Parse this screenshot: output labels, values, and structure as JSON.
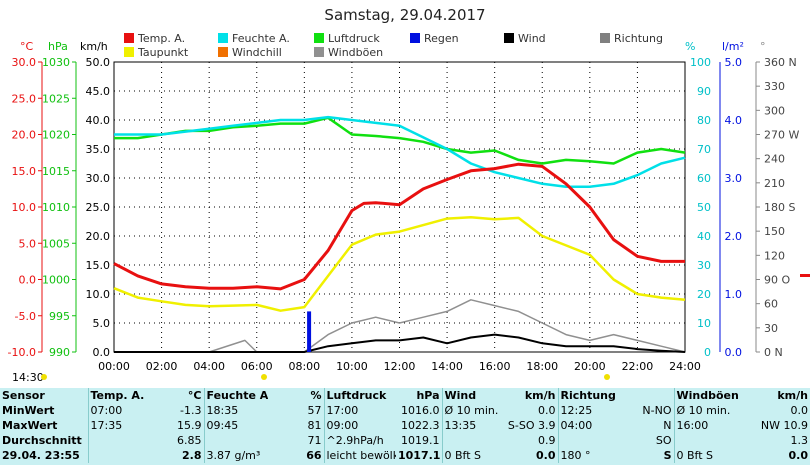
{
  "title": "Samstag, 29.04.2017",
  "units": {
    "temp": "°C",
    "press": "hPa",
    "wind": "km/h",
    "hum": "%",
    "rain": "l/m²",
    "dir": "°"
  },
  "legend": [
    {
      "label": "Temp. A.",
      "color": "#e81010"
    },
    {
      "label": "Feuchte A.",
      "color": "#00e0e8"
    },
    {
      "label": "Luftdruck",
      "color": "#10e010"
    },
    {
      "label": "Regen",
      "color": "#0010e0"
    },
    {
      "label": "Wind",
      "color": "#000000"
    },
    {
      "label": "Richtung",
      "color": "#808080"
    },
    {
      "label": "Taupunkt",
      "color": "#f0f000"
    },
    {
      "label": "Windchill",
      "color": "#f07000"
    },
    {
      "label": "Windböen",
      "color": "#909090"
    }
  ],
  "axes": {
    "temp_ticks": [
      "30.0",
      "25.0",
      "20.0",
      "15.0",
      "10.0",
      "5.0",
      "0.0",
      "-5.0",
      "-10.0"
    ],
    "press_ticks": [
      "1030",
      "1025",
      "1020",
      "1015",
      "1010",
      "1005",
      "1000",
      "995",
      "990"
    ],
    "wind_ticks": [
      "50.0",
      "45.0",
      "40.0",
      "35.0",
      "30.0",
      "25.0",
      "20.0",
      "15.0",
      "10.0",
      "5.0",
      "0.0"
    ],
    "hum_ticks": [
      "100",
      "90",
      "80",
      "70",
      "60",
      "50",
      "40",
      "30",
      "20",
      "10",
      "0"
    ],
    "rain_ticks": [
      "5.0",
      "4.0",
      "3.0",
      "2.0",
      "1.0",
      "0.0"
    ],
    "dir_ticks": [
      "360 N",
      "330",
      "300",
      "270 W",
      "240",
      "210",
      "180 S",
      "150",
      "120",
      "90 O",
      "60",
      "30",
      "0 N"
    ],
    "time_ticks": [
      "00:00",
      "02:00",
      "04:00",
      "06:00",
      "08:00",
      "10:00",
      "12:00",
      "14:00",
      "16:00",
      "18:00",
      "20:00",
      "22:00",
      "24:00"
    ],
    "sunrise_label": "14:30"
  },
  "chart_data": {
    "type": "line",
    "title": "Samstag, 29.04.2017",
    "x_unit": "hours",
    "xlim": [
      0,
      24
    ],
    "series": [
      {
        "name": "Temp. A.",
        "axis": "temp",
        "ylim": [
          -10,
          30
        ],
        "x": [
          0,
          1,
          2,
          3,
          4,
          5,
          6,
          7,
          8,
          9,
          10,
          10.5,
          11,
          12,
          13,
          14,
          15,
          16,
          17,
          18,
          19,
          20,
          21,
          22,
          23,
          24
        ],
        "values": [
          2.2,
          0.5,
          -0.6,
          -1.0,
          -1.2,
          -1.2,
          -1.0,
          -1.3,
          0.0,
          4.0,
          9.5,
          10.5,
          10.6,
          10.3,
          12.5,
          13.8,
          15.0,
          15.3,
          15.9,
          15.6,
          13.2,
          10.0,
          5.5,
          3.2,
          2.5,
          2.5
        ]
      },
      {
        "name": "Taupunkt",
        "axis": "temp",
        "ylim": [
          -10,
          30
        ],
        "x": [
          0,
          1,
          2,
          3,
          4,
          5,
          6,
          7,
          8,
          9,
          10,
          11,
          12,
          13,
          14,
          15,
          16,
          17,
          18,
          19,
          20,
          21,
          22,
          23,
          24
        ],
        "values": [
          -1.2,
          -2.5,
          -3.0,
          -3.5,
          -3.7,
          -3.6,
          -3.5,
          -4.3,
          -3.8,
          0.5,
          4.8,
          6.2,
          6.6,
          7.5,
          8.4,
          8.6,
          8.3,
          8.5,
          6.0,
          4.7,
          3.4,
          0.0,
          -2.0,
          -2.5,
          -2.8
        ]
      },
      {
        "name": "Feuchte A.",
        "axis": "hum",
        "ylim": [
          0,
          100
        ],
        "x": [
          0,
          1,
          2,
          3,
          4,
          5,
          6,
          7,
          8,
          9,
          10,
          11,
          12,
          13,
          14,
          15,
          16,
          17,
          18,
          19,
          20,
          21,
          22,
          23,
          24
        ],
        "values": [
          75,
          75,
          75,
          76,
          77,
          78,
          79,
          80,
          80,
          81,
          80,
          79,
          78,
          74,
          70,
          65,
          62,
          60,
          58,
          57,
          57,
          58,
          61,
          65,
          67
        ]
      },
      {
        "name": "Luftdruck",
        "axis": "press",
        "ylim": [
          990,
          1030
        ],
        "x": [
          0,
          1,
          2,
          3,
          4,
          5,
          6,
          7,
          8,
          9,
          10,
          11,
          12,
          13,
          14,
          15,
          16,
          17,
          18,
          19,
          20,
          21,
          22,
          23,
          24
        ],
        "values": [
          1019.5,
          1019.5,
          1020.0,
          1020.5,
          1020.5,
          1021.0,
          1021.2,
          1021.5,
          1021.5,
          1022.3,
          1020.0,
          1019.8,
          1019.5,
          1019.0,
          1018.0,
          1017.5,
          1017.8,
          1016.5,
          1016.0,
          1016.5,
          1016.3,
          1016.0,
          1017.5,
          1018.0,
          1017.5
        ]
      },
      {
        "name": "Wind",
        "axis": "wind",
        "ylim": [
          0,
          50
        ],
        "x": [
          0,
          2,
          4,
          6,
          7,
          8,
          9,
          10,
          11,
          12,
          13,
          14,
          15,
          16,
          17,
          18,
          19,
          20,
          21,
          22,
          23,
          24
        ],
        "values": [
          0,
          0,
          0,
          0,
          0,
          0,
          1.0,
          1.5,
          2.0,
          2.0,
          2.5,
          1.5,
          2.5,
          3.0,
          2.5,
          1.5,
          1.0,
          1.0,
          1.0,
          0.5,
          0.2,
          0
        ]
      },
      {
        "name": "Windböen",
        "axis": "wind",
        "ylim": [
          0,
          50
        ],
        "x": [
          0,
          2,
          4,
          5.5,
          6,
          7,
          8,
          9,
          10,
          11,
          12,
          13,
          14,
          15,
          16,
          17,
          18,
          19,
          20,
          21,
          22,
          23,
          24
        ],
        "values": [
          0,
          0,
          0,
          2,
          0,
          0,
          0,
          3,
          5,
          6,
          5,
          6,
          7,
          9,
          8,
          7,
          5,
          3,
          2,
          3,
          2,
          1,
          0
        ]
      },
      {
        "name": "Regen",
        "axis": "rain",
        "ylim": [
          0,
          5
        ],
        "x": [
          8.2
        ],
        "values": [
          0.7
        ]
      }
    ]
  },
  "stats": {
    "headers": {
      "sensor": "Sensor",
      "temp": "Temp. A.",
      "temp_u": "°C",
      "hum": "Feuchte A.",
      "hum_u": "%",
      "press": "Luftdruck",
      "press_u": "hPa",
      "wind": "Wind",
      "wind_u": "km/h",
      "dir": "Richtung",
      "gust": "Windböen",
      "gust_u": "km/h"
    },
    "rows": [
      {
        "label": "MinWert",
        "temp_t": "07:00",
        "temp_v": "-1.3",
        "hum_t": "18:35",
        "hum_v": "57",
        "press_t": "17:00",
        "press_v": "1016.0",
        "wind_t": "Ø 10 min.",
        "wind_v": "0.0",
        "dir_t": "12:25",
        "dir_v": "N-NO",
        "gust_t": "Ø 10 min.",
        "gust_v": "0.0"
      },
      {
        "label": "MaxWert",
        "temp_t": "17:35",
        "temp_v": "15.9",
        "hum_t": "09:45",
        "hum_v": "81",
        "press_t": "09:00",
        "press_v": "1022.3",
        "wind_t": "13:35",
        "wind_v": "S-SO 3.9",
        "dir_t": "04:00",
        "dir_v": "N",
        "gust_t": "16:00",
        "gust_v": "NW 10.9"
      },
      {
        "label": "Durchschnitt",
        "temp_t": "",
        "temp_v": "6.85",
        "hum_t": "",
        "hum_v": "71",
        "press_t": "^2.9hPa/h",
        "press_v": "1019.1",
        "wind_t": "",
        "wind_v": "0.9",
        "dir_t": "",
        "dir_v": "SO",
        "gust_t": "",
        "gust_v": "1.3"
      },
      {
        "label": "29.04. 23:55",
        "temp_t": "",
        "temp_v": "2.8",
        "hum_t": "3.87 g/m³",
        "hum_v": "66",
        "press_t": "leicht bewölkt",
        "press_v": "1017.1",
        "wind_t": "0 Bft S",
        "wind_v": "0.0",
        "dir_t": "180 °",
        "dir_v": "S",
        "gust_t": "0 Bft S",
        "gust_v": "0.0"
      }
    ]
  }
}
